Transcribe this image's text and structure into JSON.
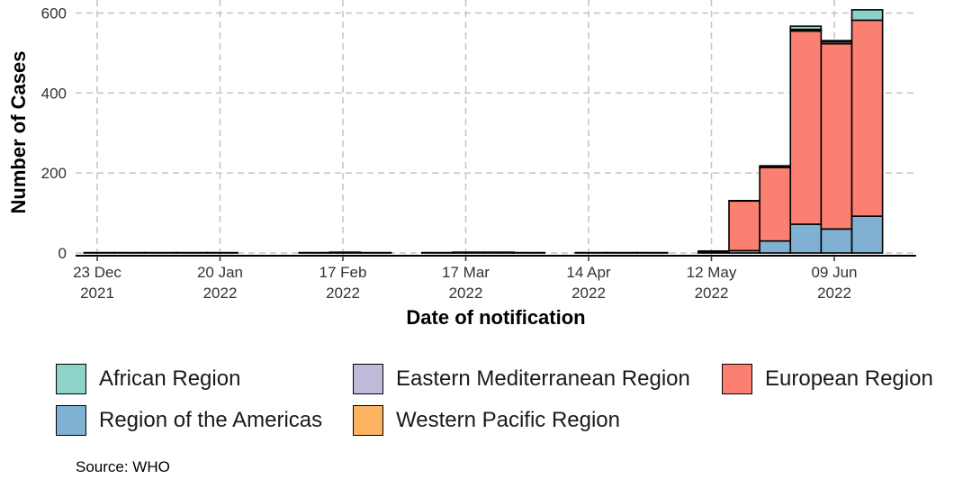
{
  "chart_data": {
    "type": "bar",
    "stacked": true,
    "xlabel": "Date of notification",
    "ylabel": "Number of Cases",
    "ylim": [
      0,
      610
    ],
    "yticks": [
      0,
      200,
      400,
      600
    ],
    "grid": true,
    "legend_position": "bottom",
    "x_ticks": [
      {
        "date": "2021-12-23",
        "line1": "23 Dec",
        "line2": "2021"
      },
      {
        "date": "2022-01-20",
        "line1": "20 Jan",
        "line2": "2022"
      },
      {
        "date": "2022-02-17",
        "line1": "17 Feb",
        "line2": "2022"
      },
      {
        "date": "2022-03-17",
        "line1": "17 Mar",
        "line2": "2022"
      },
      {
        "date": "2022-04-14",
        "line1": "14 Apr",
        "line2": "2022"
      },
      {
        "date": "2022-05-12",
        "line1": "12 May",
        "line2": "2022"
      },
      {
        "date": "2022-06-09",
        "line1": "09 Jun",
        "line2": "2022"
      }
    ],
    "weeks": [
      "2021-12-20",
      "2021-12-27",
      "2022-01-03",
      "2022-01-10",
      "2022-01-17",
      "2022-01-24",
      "2022-01-31",
      "2022-02-07",
      "2022-02-14",
      "2022-02-21",
      "2022-02-28",
      "2022-03-07",
      "2022-03-14",
      "2022-03-21",
      "2022-03-28",
      "2022-04-04",
      "2022-04-11",
      "2022-04-18",
      "2022-04-25",
      "2022-05-02",
      "2022-05-09",
      "2022-05-16",
      "2022-05-23",
      "2022-05-30",
      "2022-06-06",
      "2022-06-13"
    ],
    "series": [
      {
        "name": "Region of the Americas",
        "color": "#80b1d3",
        "values": [
          0,
          0,
          0,
          0,
          0,
          0,
          0,
          0,
          0,
          0,
          0,
          0,
          0,
          0,
          0,
          0,
          0,
          0,
          0,
          0,
          0,
          6,
          30,
          72,
          60,
          92
        ]
      },
      {
        "name": "European Region",
        "color": "#fb8072",
        "values": [
          0,
          0,
          0,
          0,
          0,
          0,
          0,
          0,
          0,
          0,
          0,
          0,
          0,
          0,
          0,
          0,
          0,
          0,
          0,
          0,
          3,
          124,
          184,
          483,
          463,
          490
        ]
      },
      {
        "name": "Western Pacific Region",
        "color": "#fdb462",
        "values": [
          1,
          1,
          1,
          1,
          1,
          0,
          0,
          1,
          2,
          1,
          0,
          1,
          2,
          2,
          1,
          0,
          1,
          1,
          1,
          0,
          2,
          1,
          2,
          1,
          1,
          0
        ]
      },
      {
        "name": "Eastern Mediterranean Region",
        "color": "#bebada",
        "values": [
          0,
          0,
          0,
          0,
          0,
          0,
          0,
          0,
          0,
          0,
          0,
          0,
          0,
          0,
          0,
          0,
          0,
          0,
          0,
          0,
          0,
          0,
          0,
          3,
          5,
          0
        ]
      },
      {
        "name": "African Region",
        "color": "#8dd3c7",
        "values": [
          0,
          0,
          0,
          0,
          0,
          0,
          0,
          0,
          0,
          0,
          0,
          0,
          0,
          0,
          0,
          0,
          0,
          0,
          0,
          0,
          0,
          0,
          2,
          8,
          2,
          26
        ]
      }
    ]
  },
  "legend": {
    "items": [
      {
        "label": "African Region",
        "color": "#8dd3c7"
      },
      {
        "label": "Eastern Mediterranean Region",
        "color": "#bebada"
      },
      {
        "label": "European Region",
        "color": "#fb8072"
      },
      {
        "label": "Region of the Americas",
        "color": "#80b1d3"
      },
      {
        "label": "Western Pacific Region",
        "color": "#fdb462"
      }
    ]
  },
  "caption": "Source: WHO"
}
